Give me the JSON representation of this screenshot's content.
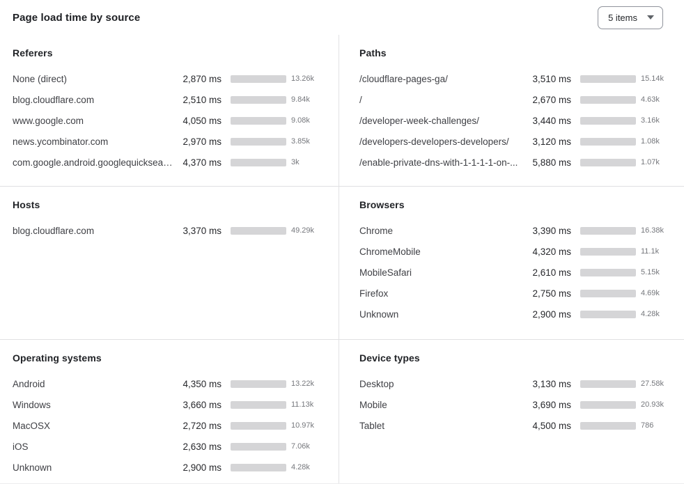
{
  "header": {
    "title": "Page load time by source",
    "items_select": {
      "value": "5 items"
    }
  },
  "colors": {
    "bar_fill": "#3370e8",
    "bar_track": "#d5d5d7"
  },
  "chart_data": [
    {
      "type": "bar",
      "title": "Referers",
      "unit": "ms",
      "bar_scale_ms": 7300,
      "rows": [
        {
          "label": "None (direct)",
          "ms": 2870,
          "ms_label": "2,870 ms",
          "count": "13.26k"
        },
        {
          "label": "blog.cloudflare.com",
          "ms": 2510,
          "ms_label": "2,510 ms",
          "count": "9.84k"
        },
        {
          "label": "www.google.com",
          "ms": 4050,
          "ms_label": "4,050 ms",
          "count": "9.08k"
        },
        {
          "label": "news.ycombinator.com",
          "ms": 2970,
          "ms_label": "2,970 ms",
          "count": "3.85k"
        },
        {
          "label": "com.google.android.googlequicksearc...",
          "ms": 4370,
          "ms_label": "4,370 ms",
          "count": "3k"
        }
      ]
    },
    {
      "type": "bar",
      "title": "Paths",
      "unit": "ms",
      "bar_scale_ms": 6600,
      "rows": [
        {
          "label": "/cloudflare-pages-ga/",
          "ms": 3510,
          "ms_label": "3,510 ms",
          "count": "15.14k"
        },
        {
          "label": "/",
          "ms": 2670,
          "ms_label": "2,670 ms",
          "count": "4.63k"
        },
        {
          "label": "/developer-week-challenges/",
          "ms": 3440,
          "ms_label": "3,440 ms",
          "count": "3.16k"
        },
        {
          "label": "/developers-developers-developers/",
          "ms": 3120,
          "ms_label": "3,120 ms",
          "count": "1.08k"
        },
        {
          "label": "/enable-private-dns-with-1-1-1-1-on-...",
          "ms": 5880,
          "ms_label": "5,880 ms",
          "count": "1.07k"
        }
      ]
    },
    {
      "type": "bar",
      "title": "Hosts",
      "unit": "ms",
      "bar_scale_ms": 3370,
      "rows": [
        {
          "label": "blog.cloudflare.com",
          "ms": 3370,
          "ms_label": "3,370 ms",
          "count": "49.29k"
        }
      ]
    },
    {
      "type": "bar",
      "title": "Browsers",
      "unit": "ms",
      "bar_scale_ms": 6000,
      "rows": [
        {
          "label": "Chrome",
          "ms": 3390,
          "ms_label": "3,390 ms",
          "count": "16.38k"
        },
        {
          "label": "ChromeMobile",
          "ms": 4320,
          "ms_label": "4,320 ms",
          "count": "11.1k"
        },
        {
          "label": "MobileSafari",
          "ms": 2610,
          "ms_label": "2,610 ms",
          "count": "5.15k"
        },
        {
          "label": "Firefox",
          "ms": 2750,
          "ms_label": "2,750 ms",
          "count": "4.69k"
        },
        {
          "label": "Unknown",
          "ms": 2900,
          "ms_label": "2,900 ms",
          "count": "4.28k"
        }
      ]
    },
    {
      "type": "bar",
      "title": "Operating systems",
      "unit": "ms",
      "bar_scale_ms": 4630,
      "rows": [
        {
          "label": "Android",
          "ms": 4350,
          "ms_label": "4,350 ms",
          "count": "13.22k"
        },
        {
          "label": "Windows",
          "ms": 3660,
          "ms_label": "3,660 ms",
          "count": "11.13k"
        },
        {
          "label": "MacOSX",
          "ms": 2720,
          "ms_label": "2,720 ms",
          "count": "10.97k"
        },
        {
          "label": "iOS",
          "ms": 2630,
          "ms_label": "2,630 ms",
          "count": "7.06k"
        },
        {
          "label": "Unknown",
          "ms": 2900,
          "ms_label": "2,900 ms",
          "count": "4.28k"
        }
      ]
    },
    {
      "type": "bar",
      "title": "Device types",
      "unit": "ms",
      "bar_scale_ms": 4500,
      "rows": [
        {
          "label": "Desktop",
          "ms": 3130,
          "ms_label": "3,130 ms",
          "count": "27.58k"
        },
        {
          "label": "Mobile",
          "ms": 3690,
          "ms_label": "3,690 ms",
          "count": "20.93k"
        },
        {
          "label": "Tablet",
          "ms": 4500,
          "ms_label": "4,500 ms",
          "count": "786"
        }
      ]
    }
  ]
}
